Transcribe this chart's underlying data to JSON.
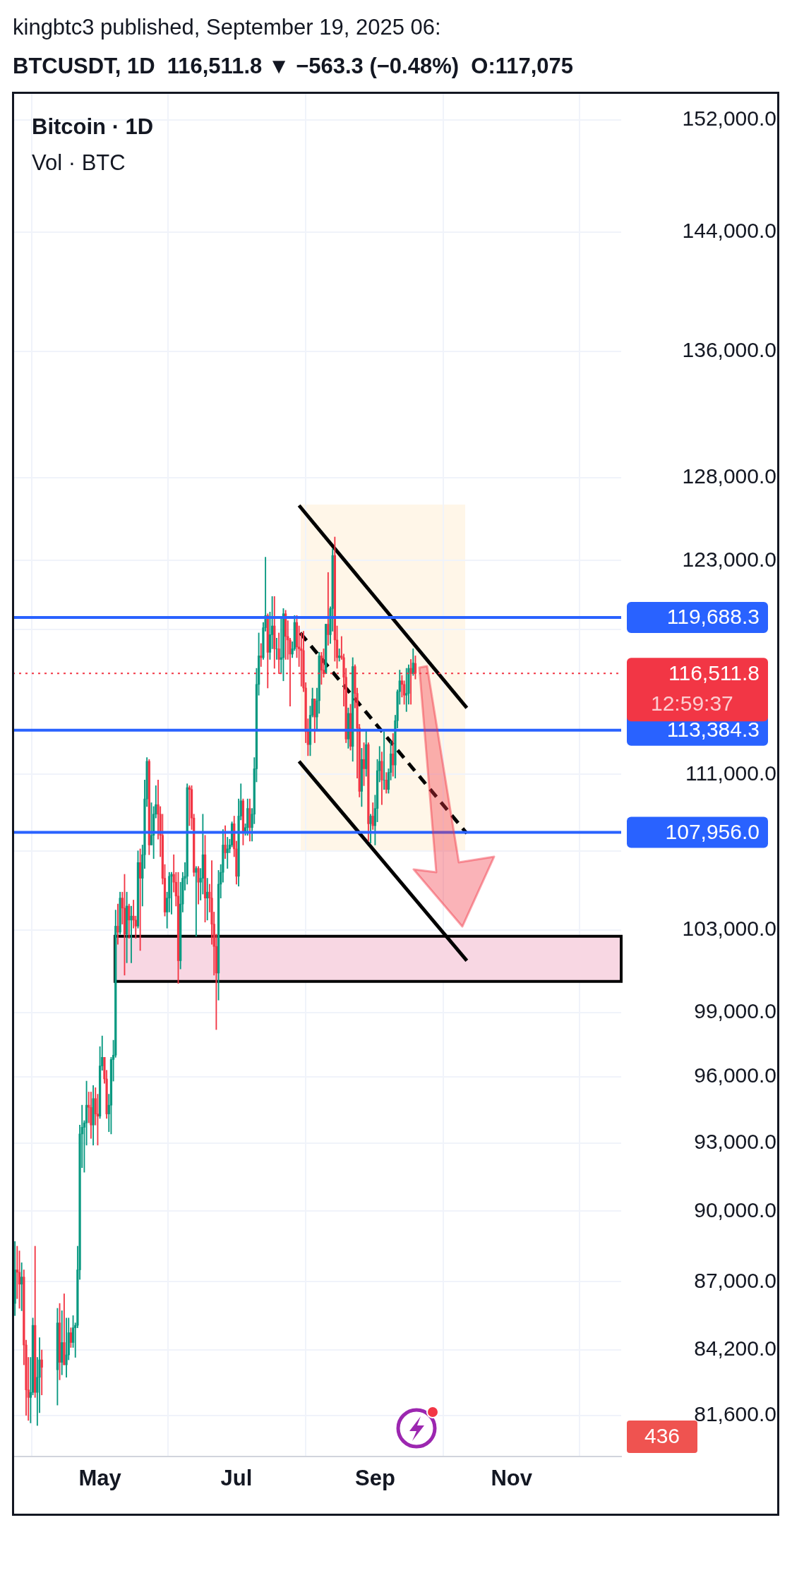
{
  "chart_data": {
    "type": "candlestick",
    "title": "kingbtc3 published, September 19, 2025 06:",
    "subtitle": "BTCUSDT, 1D  116,511.8 ▼ −563.3 (−0.48%)  O:117,075",
    "annotations": [
      "Bitcoin · 1D",
      "Vol · BTC",
      "12:59:37",
      "436"
    ],
    "x": [
      "2025-03-24",
      "2025-03-25",
      "2025-03-26",
      "2025-03-27",
      "2025-03-28",
      "2025-03-29",
      "2025-03-30",
      "2025-03-31",
      "2025-04-01",
      "2025-04-02",
      "2025-04-03",
      "2025-04-04",
      "2025-04-05",
      "2025-04-12",
      "2025-04-13",
      "2025-04-14",
      "2025-04-15",
      "2025-04-16",
      "2025-04-17",
      "2025-04-18",
      "2025-04-19",
      "2025-04-20",
      "2025-04-21",
      "2025-04-22",
      "2025-04-23",
      "2025-04-24",
      "2025-04-25",
      "2025-04-26",
      "2025-04-27",
      "2025-04-28",
      "2025-04-29",
      "2025-04-30",
      "2025-05-01",
      "2025-05-02",
      "2025-05-03",
      "2025-05-04",
      "2025-05-05",
      "2025-05-06",
      "2025-05-07",
      "2025-05-08",
      "2025-05-09",
      "2025-05-10",
      "2025-05-11",
      "2025-05-12",
      "2025-05-13",
      "2025-05-14",
      "2025-05-15",
      "2025-05-16",
      "2025-05-17",
      "2025-05-18",
      "2025-05-19",
      "2025-05-20",
      "2025-05-21",
      "2025-05-22",
      "2025-05-23",
      "2025-05-24",
      "2025-05-25",
      "2025-05-26",
      "2025-05-27",
      "2025-05-28",
      "2025-05-29",
      "2025-05-30",
      "2025-05-31",
      "2025-06-01",
      "2025-06-02",
      "2025-06-03",
      "2025-06-04",
      "2025-06-05",
      "2025-06-06",
      "2025-06-07",
      "2025-06-08",
      "2025-06-09",
      "2025-06-10",
      "2025-06-11",
      "2025-06-12",
      "2025-06-13",
      "2025-06-14",
      "2025-06-15",
      "2025-06-16",
      "2025-06-17",
      "2025-06-18",
      "2025-06-19",
      "2025-06-20",
      "2025-06-21",
      "2025-06-22",
      "2025-06-23",
      "2025-06-24",
      "2025-06-25",
      "2025-06-26",
      "2025-06-27",
      "2025-06-28",
      "2025-06-29",
      "2025-06-30",
      "2025-07-01",
      "2025-07-02",
      "2025-07-03",
      "2025-07-04",
      "2025-07-05",
      "2025-07-06",
      "2025-07-07",
      "2025-07-08",
      "2025-07-09",
      "2025-07-10",
      "2025-07-11",
      "2025-07-12",
      "2025-07-13",
      "2025-07-14",
      "2025-07-15",
      "2025-07-16",
      "2025-07-17",
      "2025-07-18",
      "2025-07-19",
      "2025-07-20",
      "2025-07-21",
      "2025-07-22",
      "2025-07-23",
      "2025-07-24",
      "2025-07-25",
      "2025-07-26",
      "2025-07-27",
      "2025-07-28",
      "2025-07-29",
      "2025-07-30",
      "2025-07-31",
      "2025-08-01",
      "2025-08-02",
      "2025-08-03",
      "2025-08-04",
      "2025-08-05",
      "2025-08-06",
      "2025-08-07",
      "2025-08-08",
      "2025-08-09",
      "2025-08-10",
      "2025-08-11",
      "2025-08-12",
      "2025-08-13",
      "2025-08-14",
      "2025-08-15",
      "2025-08-16",
      "2025-08-17",
      "2025-08-18",
      "2025-08-19",
      "2025-08-20",
      "2025-08-21",
      "2025-08-22",
      "2025-08-23",
      "2025-08-24",
      "2025-08-25",
      "2025-08-26",
      "2025-08-27",
      "2025-08-28",
      "2025-08-29",
      "2025-08-30",
      "2025-08-31",
      "2025-09-01",
      "2025-09-02",
      "2025-09-03",
      "2025-09-04",
      "2025-09-05",
      "2025-09-06",
      "2025-09-07",
      "2025-09-08",
      "2025-09-09",
      "2025-09-10",
      "2025-09-11",
      "2025-09-12",
      "2025-09-13",
      "2025-09-14",
      "2025-09-15",
      "2025-09-16",
      "2025-09-17",
      "2025-09-18",
      "2025-09-19"
    ],
    "ohlc": [
      [
        86100,
        88700,
        85600,
        87500
      ],
      [
        87500,
        88500,
        86300,
        87400
      ],
      [
        87400,
        88300,
        85900,
        86900
      ],
      [
        86900,
        87800,
        85800,
        87200
      ],
      [
        87200,
        87500,
        83600,
        84400
      ],
      [
        84400,
        84600,
        81600,
        82600
      ],
      [
        82600,
        83900,
        81400,
        82300
      ],
      [
        82300,
        83900,
        81300,
        82500
      ],
      [
        82500,
        85500,
        82400,
        85200
      ],
      [
        85200,
        88500,
        82300,
        82500
      ],
      [
        82500,
        83900,
        81200,
        83100
      ],
      [
        83100,
        84700,
        81700,
        83800
      ],
      [
        83800,
        84200,
        82400,
        83500
      ],
      [
        83400,
        85900,
        82000,
        85300
      ],
      [
        85300,
        86100,
        83000,
        83700
      ],
      [
        83700,
        85800,
        83200,
        84500
      ],
      [
        84500,
        86500,
        83600,
        83600
      ],
      [
        83600,
        85500,
        83100,
        84000
      ],
      [
        84000,
        85500,
        83800,
        84900
      ],
      [
        84900,
        85100,
        84300,
        84500
      ],
      [
        84500,
        85600,
        84300,
        85100
      ],
      [
        85100,
        85300,
        83900,
        85200
      ],
      [
        85200,
        88500,
        85100,
        87500
      ],
      [
        87500,
        93800,
        87100,
        93400
      ],
      [
        93400,
        94700,
        91900,
        93700
      ],
      [
        93700,
        94000,
        91700,
        93900
      ],
      [
        93900,
        95800,
        92900,
        94700
      ],
      [
        94700,
        95300,
        93900,
        94600
      ],
      [
        94600,
        95300,
        93200,
        93800
      ],
      [
        93800,
        95600,
        92900,
        95000
      ],
      [
        95000,
        95500,
        93800,
        94300
      ],
      [
        94300,
        95200,
        92900,
        94200
      ],
      [
        94200,
        97400,
        94100,
        96500
      ],
      [
        96500,
        97900,
        96300,
        96900
      ],
      [
        96900,
        96900,
        95700,
        95900
      ],
      [
        95900,
        96300,
        94100,
        94300
      ],
      [
        94300,
        95200,
        93500,
        94700
      ],
      [
        94700,
        96900,
        93400,
        96800
      ],
      [
        96800,
        97700,
        95800,
        97000
      ],
      [
        97000,
        104000,
        96900,
        103200
      ],
      [
        103200,
        104300,
        102300,
        102900
      ],
      [
        102900,
        104900,
        102800,
        104600
      ],
      [
        104600,
        104900,
        103300,
        104100
      ],
      [
        104100,
        105800,
        100800,
        102800
      ],
      [
        102800,
        104900,
        101400,
        104200
      ],
      [
        104200,
        104300,
        102600,
        103500
      ],
      [
        103500,
        104200,
        101400,
        103700
      ],
      [
        103700,
        104500,
        103100,
        103500
      ],
      [
        103500,
        103700,
        102600,
        103200
      ],
      [
        103200,
        107000,
        103100,
        106400
      ],
      [
        106400,
        107100,
        102000,
        105600
      ],
      [
        105600,
        107300,
        104200,
        106800
      ],
      [
        106800,
        110700,
        106100,
        109700
      ],
      [
        109700,
        111900,
        109300,
        111700
      ],
      [
        111700,
        111800,
        106800,
        107300
      ],
      [
        107300,
        109500,
        107300,
        107800
      ],
      [
        107800,
        109300,
        106600,
        108900
      ],
      [
        108900,
        110400,
        108700,
        109400
      ],
      [
        109400,
        110700,
        107600,
        108900
      ],
      [
        108900,
        109300,
        106700,
        107800
      ],
      [
        107800,
        108900,
        105300,
        105600
      ],
      [
        105600,
        106300,
        103700,
        103900
      ],
      [
        103900,
        104900,
        103100,
        104600
      ],
      [
        104600,
        105900,
        103900,
        105700
      ],
      [
        105700,
        105900,
        103800,
        105800
      ],
      [
        105800,
        106800,
        104900,
        105400
      ],
      [
        105400,
        105900,
        104200,
        104700
      ],
      [
        104700,
        105900,
        100400,
        101500
      ],
      [
        101500,
        105400,
        101100,
        104300
      ],
      [
        104300,
        105900,
        103900,
        105600
      ],
      [
        105600,
        106400,
        105000,
        105700
      ],
      [
        105700,
        110500,
        105300,
        110300
      ],
      [
        110300,
        110400,
        108300,
        110200
      ],
      [
        110200,
        110400,
        108100,
        108700
      ],
      [
        108700,
        108900,
        105700,
        105900
      ],
      [
        105900,
        106200,
        102700,
        106100
      ],
      [
        106100,
        106200,
        104300,
        105400
      ],
      [
        105400,
        106100,
        104500,
        105600
      ],
      [
        105600,
        108900,
        104800,
        106800
      ],
      [
        106800,
        107800,
        103400,
        104600
      ],
      [
        104600,
        105600,
        103500,
        104900
      ],
      [
        104900,
        105300,
        103900,
        104600
      ],
      [
        104600,
        106500,
        102300,
        103300
      ],
      [
        103300,
        103900,
        100800,
        102200
      ],
      [
        102200,
        102800,
        98200,
        100900
      ],
      [
        100900,
        106000,
        99600,
        105300
      ],
      [
        105300,
        106300,
        104600,
        105900
      ],
      [
        105900,
        108100,
        105400,
        107300
      ],
      [
        107300,
        108300,
        106600,
        106900
      ],
      [
        106900,
        107700,
        106100,
        107100
      ],
      [
        107100,
        107600,
        106900,
        107300
      ],
      [
        107300,
        108500,
        107200,
        108400
      ],
      [
        108400,
        108800,
        106700,
        107100
      ],
      [
        107100,
        107500,
        105300,
        105700
      ],
      [
        105700,
        109700,
        105200,
        108800
      ],
      [
        108800,
        110500,
        108600,
        109600
      ],
      [
        109600,
        109700,
        107300,
        108000
      ],
      [
        108000,
        108400,
        107800,
        108200
      ],
      [
        108200,
        109700,
        107800,
        109200
      ],
      [
        109200,
        109700,
        107500,
        108200
      ],
      [
        108200,
        109200,
        107500,
        108900
      ],
      [
        108900,
        111900,
        108400,
        111300
      ],
      [
        111300,
        116800,
        110600,
        115900
      ],
      [
        115900,
        118800,
        115300,
        117500
      ],
      [
        117500,
        118200,
        116900,
        117400
      ],
      [
        117400,
        119400,
        117300,
        119100
      ],
      [
        119100,
        123200,
        118900,
        119800
      ],
      [
        119800,
        119900,
        115700,
        117700
      ],
      [
        117700,
        120000,
        117300,
        118700
      ],
      [
        118700,
        120900,
        117900,
        119200
      ],
      [
        119200,
        120900,
        116800,
        117900
      ],
      [
        117900,
        118500,
        117300,
        117900
      ],
      [
        117900,
        118800,
        116500,
        117300
      ],
      [
        117300,
        119700,
        116500,
        117400
      ],
      [
        117400,
        120200,
        116100,
        119900
      ],
      [
        119900,
        120100,
        117300,
        118600
      ],
      [
        118600,
        119500,
        117300,
        118400
      ],
      [
        118400,
        118500,
        114700,
        117600
      ],
      [
        117600,
        118300,
        117400,
        117900
      ],
      [
        117900,
        119800,
        117800,
        119400
      ],
      [
        119400,
        119800,
        117400,
        118000
      ],
      [
        118000,
        119200,
        116900,
        117900
      ],
      [
        117900,
        118800,
        115800,
        117800
      ],
      [
        117800,
        118900,
        115500,
        115700
      ],
      [
        115700,
        116000,
        112700,
        113300
      ],
      [
        113300,
        114000,
        112000,
        112600
      ],
      [
        112600,
        114700,
        112000,
        114200
      ],
      [
        114200,
        115700,
        114100,
        115100
      ],
      [
        115100,
        115100,
        112700,
        114100
      ],
      [
        114100,
        115700,
        113400,
        115000
      ],
      [
        115000,
        117700,
        114300,
        117500
      ],
      [
        117500,
        117700,
        115900,
        116700
      ],
      [
        116700,
        117900,
        116300,
        116500
      ],
      [
        116500,
        119300,
        116500,
        119300
      ],
      [
        119300,
        122300,
        118100,
        118700
      ],
      [
        118700,
        120300,
        118200,
        120200
      ],
      [
        120200,
        123700,
        118900,
        123300
      ],
      [
        123300,
        124400,
        117200,
        118400
      ],
      [
        118400,
        119200,
        116800,
        117400
      ],
      [
        117400,
        117900,
        117200,
        117500
      ],
      [
        117500,
        118600,
        117300,
        117400
      ],
      [
        117400,
        117600,
        114700,
        116300
      ],
      [
        116300,
        116800,
        112700,
        112900
      ],
      [
        112900,
        114600,
        112400,
        114300
      ],
      [
        114300,
        114800,
        112300,
        112500
      ],
      [
        112500,
        117400,
        111700,
        116900
      ],
      [
        116900,
        117000,
        114600,
        115400
      ],
      [
        115400,
        115700,
        110800,
        113500
      ],
      [
        113500,
        113700,
        109800,
        110100
      ],
      [
        110100,
        112400,
        109300,
        111800
      ],
      [
        111800,
        112700,
        110400,
        111300
      ],
      [
        111300,
        113400,
        110900,
        112600
      ],
      [
        112600,
        112700,
        107500,
        108400
      ],
      [
        108400,
        108900,
        107400,
        108800
      ],
      [
        108800,
        109500,
        108100,
        108300
      ],
      [
        108300,
        109900,
        107300,
        109200
      ],
      [
        109200,
        111800,
        108500,
        111200
      ],
      [
        111200,
        112500,
        110600,
        111700
      ],
      [
        111700,
        112200,
        109400,
        110700
      ],
      [
        110700,
        113300,
        110200,
        110700
      ],
      [
        110700,
        111100,
        110000,
        110200
      ],
      [
        110200,
        111300,
        110000,
        111100
      ],
      [
        111100,
        112800,
        110700,
        112100
      ],
      [
        112100,
        113200,
        110900,
        111500
      ],
      [
        111500,
        114200,
        110800,
        113900
      ],
      [
        113900,
        115600,
        113500,
        115500
      ],
      [
        115500,
        116700,
        114800,
        116100
      ],
      [
        116100,
        116400,
        115200,
        115900
      ],
      [
        115900,
        116100,
        114800,
        115300
      ],
      [
        115300,
        116800,
        114400,
        115400
      ],
      [
        115400,
        117000,
        114800,
        116800
      ],
      [
        116800,
        117300,
        114800,
        116500
      ],
      [
        116500,
        117900,
        116400,
        117100
      ],
      [
        117075,
        117500,
        116200,
        116511.8
      ]
    ],
    "series": [
      {
        "type": "line",
        "x": [
          "2025-07-29",
          "2025-10-12"
        ],
        "values": [
          126300,
          114600
        ],
        "color": "#000000",
        "line_style": "solid"
      },
      {
        "type": "line",
        "x": [
          "2025-07-29T12:00",
          "2025-10-12"
        ],
        "values": [
          118800,
          107900
        ],
        "color": "#000000",
        "line_style": "dashed"
      },
      {
        "type": "line",
        "x": [
          "2025-07-29",
          "2025-10-12"
        ],
        "values": [
          111700,
          101500
        ],
        "color": "#000000",
        "line_style": "solid"
      }
    ],
    "xlim": [
      "2025-03-23",
      "2025-12-20"
    ],
    "xticks": [
      {
        "value": "2025-05-01",
        "label": "May"
      },
      {
        "value": "2025-07-01",
        "label": "Jul"
      },
      {
        "value": "2025-09-01",
        "label": "Sep"
      },
      {
        "value": "2025-11-01",
        "label": "Nov"
      }
    ],
    "ylim": [
      80000,
      154000
    ],
    "log": true,
    "yticks": [
      {
        "value": 81600,
        "label": "81,600.0"
      },
      {
        "value": 84200,
        "label": "84,200.0"
      },
      {
        "value": 87000,
        "label": "87,000.0"
      },
      {
        "value": 90000,
        "label": "90,000.0"
      },
      {
        "value": 93000,
        "label": "93,000.0"
      },
      {
        "value": 96000,
        "label": "96,000.0"
      },
      {
        "value": 99000,
        "label": "99,000.0"
      },
      {
        "value": 103000,
        "label": "103,000.0"
      },
      {
        "value": 107000,
        "label": null
      },
      {
        "value": 111000,
        "label": "111,000.0"
      },
      {
        "value": 119000,
        "label": null
      },
      {
        "value": 123000,
        "label": "123,000.0"
      },
      {
        "value": 128000,
        "label": "128,000.0"
      },
      {
        "value": 136000,
        "label": "136,000.0"
      },
      {
        "value": 144000,
        "label": "144,000.0"
      },
      {
        "value": 152000,
        "label": "152,000.0"
      }
    ],
    "grid": true,
    "ref_lines": [
      {
        "axis": "y",
        "value": 119688.3,
        "label": "119,688.3",
        "color": "#2962ff",
        "line_style": "solid"
      },
      {
        "axis": "y",
        "value": 113384.3,
        "label": "113,384.3",
        "color": "#2962ff",
        "line_style": "solid"
      },
      {
        "axis": "y",
        "value": 107956.0,
        "label": "107,956.0",
        "color": "#2962ff",
        "line_style": "solid"
      },
      {
        "axis": "y",
        "value": 116511.8,
        "label": "116,511.8",
        "color": "#f23645",
        "line_style": "dotted"
      }
    ],
    "bands": [
      {
        "axis": "y",
        "from": 100500,
        "to": 102700,
        "color": "#f8d7e3"
      }
    ]
  }
}
